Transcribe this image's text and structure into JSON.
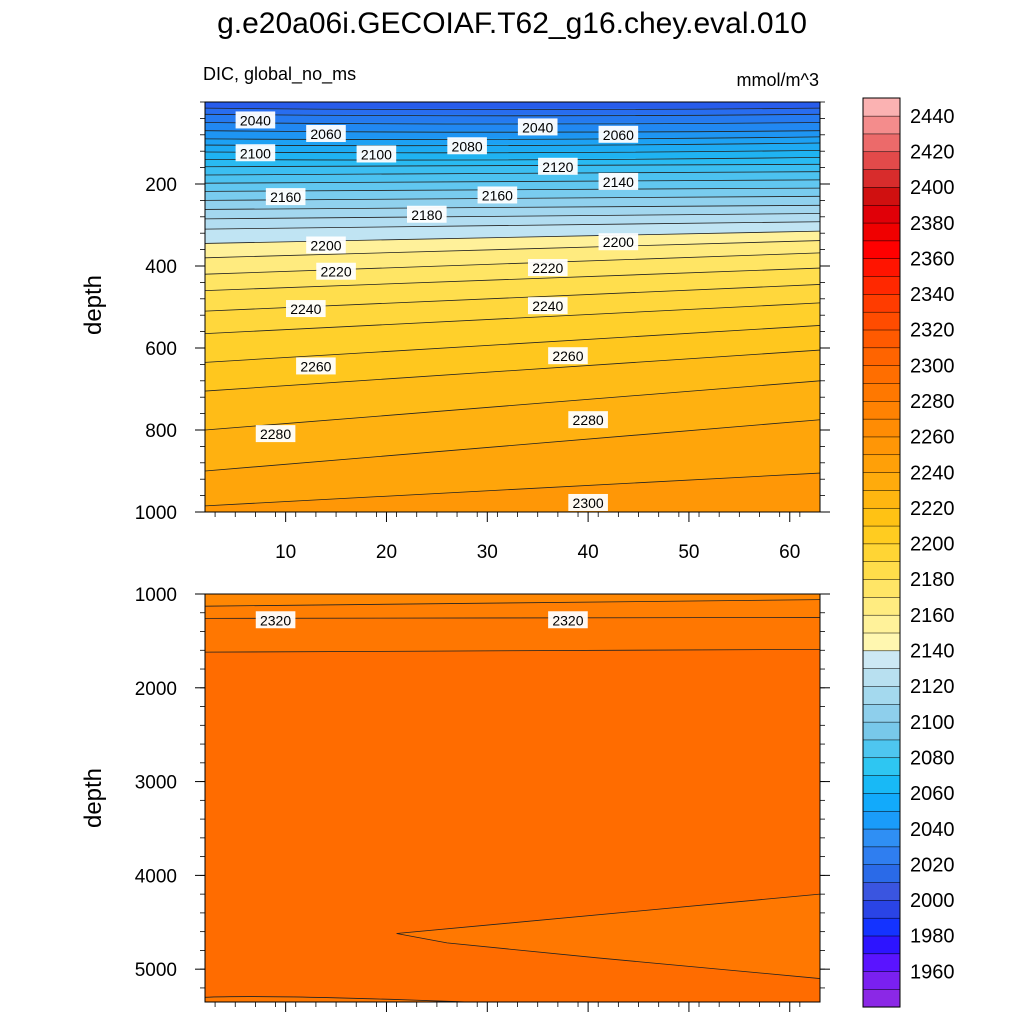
{
  "chart_data": {
    "type": "contour",
    "title": "g.e20a06i.GECOIAF.T62_g16.chey.eval.010",
    "subtitle_left": "DIC, global_no_ms",
    "units": "mmol/m^3",
    "x": {
      "ticks": [
        "10",
        "20",
        "30",
        "40",
        "50",
        "60"
      ],
      "values": [
        10,
        20,
        30,
        40,
        50,
        60
      ],
      "range": [
        2,
        63
      ]
    },
    "panels": [
      {
        "name": "upper",
        "ylabel": "depth",
        "ylim": [
          0,
          1000
        ],
        "yticks": [
          "200",
          "400",
          "600",
          "800",
          "1000"
        ],
        "ytick_values": [
          200,
          400,
          600,
          800,
          1000
        ],
        "contour_interval": 10,
        "contour_labels": [
          {
            "text": "2040",
            "x": 7,
            "depth": 45
          },
          {
            "text": "2060",
            "x": 14,
            "depth": 78
          },
          {
            "text": "2100",
            "x": 7,
            "depth": 125
          },
          {
            "text": "2100",
            "x": 19,
            "depth": 128
          },
          {
            "text": "2080",
            "x": 28,
            "depth": 108
          },
          {
            "text": "2040",
            "x": 35,
            "depth": 62
          },
          {
            "text": "2060",
            "x": 43,
            "depth": 80
          },
          {
            "text": "2120",
            "x": 37,
            "depth": 158
          },
          {
            "text": "2140",
            "x": 43,
            "depth": 195
          },
          {
            "text": "2160",
            "x": 10,
            "depth": 232
          },
          {
            "text": "2160",
            "x": 31,
            "depth": 228
          },
          {
            "text": "2180",
            "x": 24,
            "depth": 275
          },
          {
            "text": "2200",
            "x": 14,
            "depth": 350
          },
          {
            "text": "2200",
            "x": 43,
            "depth": 342
          },
          {
            "text": "2220",
            "x": 15,
            "depth": 414
          },
          {
            "text": "2220",
            "x": 36,
            "depth": 405
          },
          {
            "text": "2240",
            "x": 12,
            "depth": 505
          },
          {
            "text": "2240",
            "x": 36,
            "depth": 498
          },
          {
            "text": "2260",
            "x": 13,
            "depth": 645
          },
          {
            "text": "2260",
            "x": 38,
            "depth": 620
          },
          {
            "text": "2280",
            "x": 9,
            "depth": 810
          },
          {
            "text": "2280",
            "x": 40,
            "depth": 776
          },
          {
            "text": "2300",
            "x": 40,
            "depth": 978
          }
        ]
      },
      {
        "name": "lower",
        "ylabel": "depth",
        "ylim": [
          1000,
          5350
        ],
        "yticks": [
          "1000",
          "2000",
          "3000",
          "4000",
          "5000"
        ],
        "ytick_values": [
          1000,
          2000,
          3000,
          4000,
          5000
        ],
        "contour_labels": [
          {
            "text": "2320",
            "x": 9,
            "depth": 1280
          },
          {
            "text": "2320",
            "x": 38,
            "depth": 1280
          }
        ]
      }
    ],
    "colorbar": {
      "levels": [
        "1960",
        "1980",
        "2000",
        "2020",
        "2040",
        "2060",
        "2080",
        "2100",
        "2120",
        "2140",
        "2160",
        "2180",
        "2200",
        "2220",
        "2240",
        "2260",
        "2280",
        "2300",
        "2320",
        "2340",
        "2360",
        "2380",
        "2400",
        "2420",
        "2440"
      ],
      "colors": [
        "#8b28e6",
        "#7a20f0",
        "#5a14ff",
        "#2d14ff",
        "#1433ff",
        "#2a44e6",
        "#3a55e0",
        "#2a6ae8",
        "#2f7ef0",
        "#2f8ff4",
        "#1a9cfa",
        "#12aafb",
        "#18b9f6",
        "#2ec6f2",
        "#4ec6f0",
        "#78c8ea",
        "#8ecfec",
        "#a4d9ee",
        "#b8e0f0",
        "#cce8f4",
        "#fff7b0",
        "#fff29a",
        "#ffec80",
        "#ffe566",
        "#ffdd4a",
        "#ffd534",
        "#ffcc20",
        "#ffc214",
        "#ffb610",
        "#ffab0c",
        "#ffa008",
        "#ff9606",
        "#ff8c04",
        "#ff8202",
        "#ff7800",
        "#ff6e00",
        "#ff6400",
        "#ff5a00",
        "#ff4c00",
        "#ff3c00",
        "#ff2800",
        "#ff1400",
        "#ff0000",
        "#f00000",
        "#e00008",
        "#d01010",
        "#d82c2c",
        "#e24a4a",
        "#ec6a6a",
        "#f48c8c",
        "#fbb2b2"
      ]
    }
  }
}
